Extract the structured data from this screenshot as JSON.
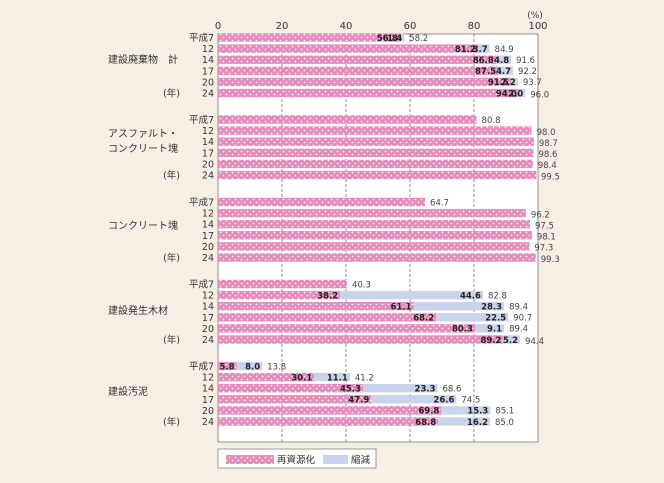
{
  "chart_data": {
    "type": "bar",
    "orientation": "horizontal",
    "stacked": true,
    "unit": "(%)",
    "xlim": [
      0,
      100
    ],
    "xticks": [
      0,
      20,
      40,
      60,
      80,
      100
    ],
    "grid": true,
    "legend_position": "bottom",
    "year_prefix": "(年)",
    "series": [
      {
        "name": "再資源化",
        "color": "#e78fbf"
      },
      {
        "name": "縮減",
        "color": "#c9d4ec"
      }
    ],
    "groups": [
      {
        "label": "建設廃棄物　計",
        "rows": [
          {
            "year": "平成7",
            "recycle": 56.8,
            "reduce": 1.4,
            "total": 58.2
          },
          {
            "year": "12",
            "recycle": 81.2,
            "reduce": 3.7,
            "total": 84.9
          },
          {
            "year": "14",
            "recycle": 86.8,
            "reduce": 4.8,
            "total": 91.6
          },
          {
            "year": "17",
            "recycle": 87.5,
            "reduce": 4.7,
            "total": 92.2
          },
          {
            "year": "20",
            "recycle": 91.5,
            "reduce": 2.2,
            "total": 93.7
          },
          {
            "year": "24",
            "recycle": 94.0,
            "reduce": 2.0,
            "total": 96.0
          }
        ]
      },
      {
        "label": "アスファルト・\nコンクリート塊",
        "rows": [
          {
            "year": "平成7",
            "recycle": 80.8,
            "reduce": null,
            "total": 80.8
          },
          {
            "year": "12",
            "recycle": 98.0,
            "reduce": null,
            "total": 98.0
          },
          {
            "year": "14",
            "recycle": 98.7,
            "reduce": null,
            "total": 98.7
          },
          {
            "year": "17",
            "recycle": 98.6,
            "reduce": null,
            "total": 98.6
          },
          {
            "year": "20",
            "recycle": 98.4,
            "reduce": null,
            "total": 98.4
          },
          {
            "year": "24",
            "recycle": 99.5,
            "reduce": null,
            "total": 99.5
          }
        ]
      },
      {
        "label": "コンクリート塊",
        "rows": [
          {
            "year": "平成7",
            "recycle": 64.7,
            "reduce": null,
            "total": 64.7
          },
          {
            "year": "12",
            "recycle": 96.2,
            "reduce": null,
            "total": 96.2
          },
          {
            "year": "14",
            "recycle": 97.5,
            "reduce": null,
            "total": 97.5
          },
          {
            "year": "17",
            "recycle": 98.1,
            "reduce": null,
            "total": 98.1
          },
          {
            "year": "20",
            "recycle": 97.3,
            "reduce": null,
            "total": 97.3
          },
          {
            "year": "24",
            "recycle": 99.3,
            "reduce": null,
            "total": 99.3
          }
        ]
      },
      {
        "label": "建設発生木材",
        "rows": [
          {
            "year": "平成7",
            "recycle": 40.3,
            "reduce": null,
            "total": 40.3
          },
          {
            "year": "12",
            "recycle": 38.2,
            "reduce": 44.6,
            "total": 82.8
          },
          {
            "year": "14",
            "recycle": 61.1,
            "reduce": 28.3,
            "total": 89.4
          },
          {
            "year": "17",
            "recycle": 68.2,
            "reduce": 22.5,
            "total": 90.7
          },
          {
            "year": "20",
            "recycle": 80.3,
            "reduce": 9.1,
            "total": 89.4
          },
          {
            "year": "24",
            "recycle": 89.2,
            "reduce": 5.2,
            "total": 94.4
          }
        ]
      },
      {
        "label": "建設汚泥",
        "rows": [
          {
            "year": "平成7",
            "recycle": 5.8,
            "reduce": 8.0,
            "total": 13.8
          },
          {
            "year": "12",
            "recycle": 30.1,
            "reduce": 11.1,
            "total": 41.2
          },
          {
            "year": "14",
            "recycle": 45.3,
            "reduce": 23.3,
            "total": 68.6
          },
          {
            "year": "17",
            "recycle": 47.9,
            "reduce": 26.6,
            "total": 74.5
          },
          {
            "year": "20",
            "recycle": 69.8,
            "reduce": 15.3,
            "total": 85.1
          },
          {
            "year": "24",
            "recycle": 68.8,
            "reduce": 16.2,
            "total": 85.0
          }
        ]
      }
    ]
  }
}
